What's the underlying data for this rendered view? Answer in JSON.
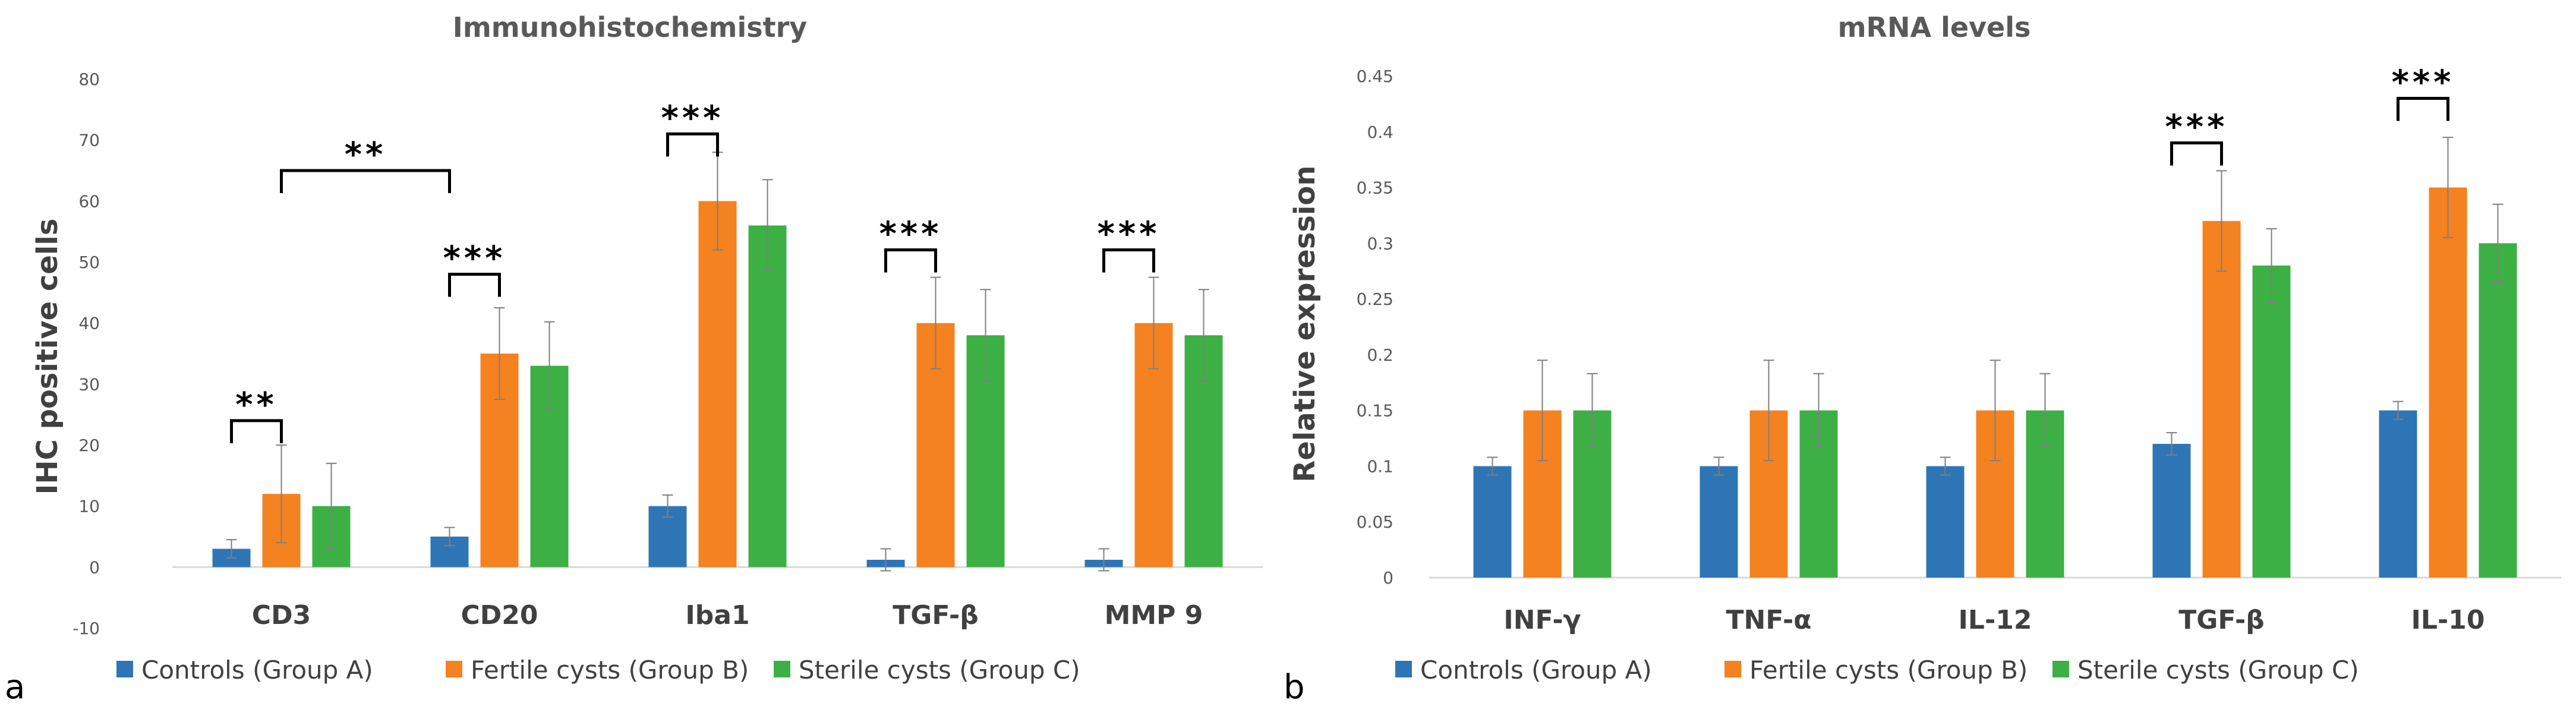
{
  "colors": {
    "controls": "#2E75B6",
    "fertile": "#F58220",
    "sterile": "#3CB044",
    "axis": "#D9D9D9",
    "text": "#404040"
  },
  "legend": {
    "items": [
      {
        "key": "controls",
        "label": "Controls (Group A)"
      },
      {
        "key": "fertile",
        "label": "Fertile cysts (Group B)"
      },
      {
        "key": "sterile",
        "label": "Sterile cysts (Group C)"
      }
    ]
  },
  "chart_data": [
    {
      "panel": "a",
      "type": "bar",
      "title": "Immunohistochemistry",
      "xlabel": "",
      "ylabel": "IHC positive cells",
      "ylim": [
        -10,
        80
      ],
      "yticks": [
        "-10",
        "0",
        "10",
        "20",
        "30",
        "40",
        "50",
        "60",
        "70",
        "80"
      ],
      "grid": false,
      "legend_position": "bottom",
      "categories": [
        "CD3",
        "CD20",
        "Iba1",
        "TGF-β",
        "MMP 9"
      ],
      "series": [
        {
          "name": "Controls (Group A)",
          "key": "controls",
          "values": [
            3,
            5,
            10,
            1.2,
            1.2
          ],
          "errors": [
            1.5,
            1.5,
            1.8,
            1.8,
            1.8
          ]
        },
        {
          "name": "Fertile cysts (Group B)",
          "key": "fertile",
          "values": [
            12,
            35,
            60,
            40,
            40
          ],
          "errors": [
            8,
            7.5,
            8,
            7.5,
            7.5
          ]
        },
        {
          "name": "Sterile cysts (Group C)",
          "key": "sterile",
          "values": [
            10,
            33,
            56,
            38,
            38
          ],
          "errors": [
            7,
            7.2,
            7.5,
            7.5,
            7.5
          ]
        }
      ],
      "annotations": [
        {
          "text": "**",
          "from": [
            0,
            0
          ],
          "to": [
            0,
            1
          ],
          "y": 24
        },
        {
          "text": "**",
          "from": [
            0,
            1
          ],
          "to": [
            1,
            0
          ],
          "y": 65
        },
        {
          "text": "***",
          "from": [
            1,
            0
          ],
          "to": [
            1,
            1
          ],
          "y": 48
        },
        {
          "text": "***",
          "from": [
            2,
            0
          ],
          "to": [
            2,
            1
          ],
          "y": 71
        },
        {
          "text": "***",
          "from": [
            3,
            0
          ],
          "to": [
            3,
            1
          ],
          "y": 52
        },
        {
          "text": "***",
          "from": [
            4,
            0
          ],
          "to": [
            4,
            1
          ],
          "y": 52
        }
      ]
    },
    {
      "panel": "b",
      "type": "bar",
      "title": "mRNA levels",
      "xlabel": "",
      "ylabel": "Relative expression",
      "ylim": [
        0,
        0.45
      ],
      "yticks": [
        "0",
        "0.05",
        "0.1",
        "0.15",
        "0.2",
        "0.25",
        "0.3",
        "0.35",
        "0.4",
        "0.45"
      ],
      "grid": false,
      "legend_position": "bottom",
      "categories": [
        "INF-γ",
        "TNF-α",
        "IL-12",
        "TGF-β",
        "IL-10"
      ],
      "series": [
        {
          "name": "Controls (Group A)",
          "key": "controls",
          "values": [
            0.1,
            0.1,
            0.1,
            0.12,
            0.15
          ],
          "errors": [
            0.008,
            0.008,
            0.008,
            0.01,
            0.008
          ]
        },
        {
          "name": "Fertile cysts (Group B)",
          "key": "fertile",
          "values": [
            0.15,
            0.15,
            0.15,
            0.32,
            0.35
          ],
          "errors": [
            0.045,
            0.045,
            0.045,
            0.045,
            0.045
          ]
        },
        {
          "name": "Sterile cysts (Group C)",
          "key": "sterile",
          "values": [
            0.15,
            0.15,
            0.15,
            0.28,
            0.3
          ],
          "errors": [
            0.033,
            0.033,
            0.033,
            0.033,
            0.035
          ]
        }
      ],
      "annotations": [
        {
          "text": "***",
          "from": [
            3,
            0
          ],
          "to": [
            3,
            1
          ],
          "y": 0.39
        },
        {
          "text": "***",
          "from": [
            4,
            0
          ],
          "to": [
            4,
            1
          ],
          "y": 0.43
        }
      ]
    }
  ]
}
